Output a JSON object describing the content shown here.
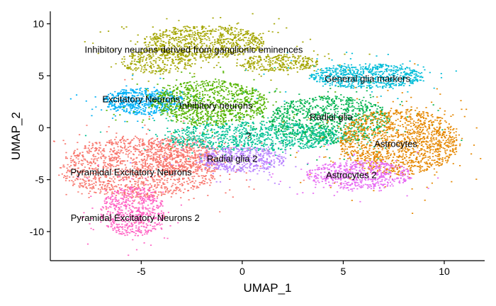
{
  "chart_data": {
    "type": "scatter",
    "title": "",
    "xlabel": "UMAP_1",
    "ylabel": "UMAP_2",
    "xlim": [
      -9.5,
      12
    ],
    "ylim": [
      -12.8,
      11.2
    ],
    "x_ticks": [
      -5,
      0,
      5,
      10
    ],
    "y_ticks": [
      -10,
      -5,
      0,
      5,
      10
    ],
    "x_tick_labels": [
      "-5",
      "0",
      "5",
      "10"
    ],
    "y_tick_labels": [
      "-10",
      "-5",
      "0",
      "5",
      "10"
    ],
    "grid": false,
    "legend": "none",
    "clusters": [
      {
        "label": "Pyramidal Excitatory Neurons",
        "color": "#F8766D",
        "label_pos": [
          -5.5,
          -4.3
        ],
        "blobs": [
          {
            "cx": -5.1,
            "cy": -3.8,
            "rx": 3.9,
            "ry": 2.9,
            "n": 1400
          },
          {
            "cx": -3.0,
            "cy": -2.6,
            "rx": 1.8,
            "ry": 1.8,
            "n": 400
          }
        ]
      },
      {
        "label": "Pyramidal Excitatory Neurons 2",
        "color": "#FF61C3",
        "label_pos": [
          -5.3,
          -8.7
        ],
        "blobs": [
          {
            "cx": -5.4,
            "cy": -8.0,
            "rx": 1.6,
            "ry": 2.4,
            "n": 600
          }
        ]
      },
      {
        "label": "Inhibitory neurons derived from ganglionic eminences",
        "color": "#A3A500",
        "label_pos": [
          -2.4,
          7.5
        ],
        "blobs": [
          {
            "cx": -1.9,
            "cy": 8.3,
            "rx": 3.0,
            "ry": 1.6,
            "n": 800
          },
          {
            "cx": -4.2,
            "cy": 6.4,
            "rx": 1.8,
            "ry": 1.2,
            "n": 300
          },
          {
            "cx": 1.8,
            "cy": 6.3,
            "rx": 2.0,
            "ry": 0.8,
            "n": 300
          }
        ]
      },
      {
        "label": "Excitatory Neurons",
        "color": "#00B0F6",
        "label_pos": [
          -5.0,
          2.7
        ],
        "blobs": [
          {
            "cx": -4.9,
            "cy": 2.6,
            "rx": 2.0,
            "ry": 1.3,
            "n": 600
          }
        ]
      },
      {
        "label": "Inhibitory neurons",
        "color": "#53B400",
        "label_pos": [
          -1.3,
          2.1
        ],
        "blobs": [
          {
            "cx": -1.6,
            "cy": 2.4,
            "rx": 2.9,
            "ry": 2.2,
            "n": 1000
          }
        ]
      },
      {
        "label": "General glia markers",
        "color": "#00BCD8",
        "label_pos": [
          6.2,
          4.7
        ],
        "blobs": [
          {
            "cx": 6.2,
            "cy": 5.0,
            "rx": 2.8,
            "ry": 1.2,
            "n": 700
          }
        ]
      },
      {
        "label": "Radial glia",
        "color": "#00B34F",
        "label_pos": [
          4.4,
          1.0
        ],
        "blobs": [
          {
            "cx": 4.3,
            "cy": 0.8,
            "rx": 3.0,
            "ry": 2.3,
            "n": 1000
          }
        ]
      },
      {
        "label": "?",
        "color": "#00C094",
        "label_pos": [
          0.3,
          -0.8
        ],
        "blobs": [
          {
            "cx": 0.6,
            "cy": -0.8,
            "rx": 4.5,
            "ry": 1.4,
            "n": 900
          }
        ]
      },
      {
        "label": "Astrocytes",
        "color": "#E58700",
        "label_pos": [
          7.6,
          -1.6
        ],
        "blobs": [
          {
            "cx": 7.8,
            "cy": -1.3,
            "rx": 3.0,
            "ry": 3.2,
            "n": 1400
          }
        ]
      },
      {
        "label": "Radial glia 2",
        "color": "#B983FF",
        "label_pos": [
          -0.5,
          -3.0
        ],
        "blobs": [
          {
            "cx": 0.0,
            "cy": -3.0,
            "rx": 2.1,
            "ry": 1.2,
            "n": 500
          }
        ]
      },
      {
        "label": "Astrocytes 2",
        "color": "#E76BF3",
        "label_pos": [
          5.4,
          -4.6
        ],
        "blobs": [
          {
            "cx": 5.8,
            "cy": -4.5,
            "rx": 2.6,
            "ry": 1.4,
            "n": 600
          }
        ]
      }
    ]
  }
}
